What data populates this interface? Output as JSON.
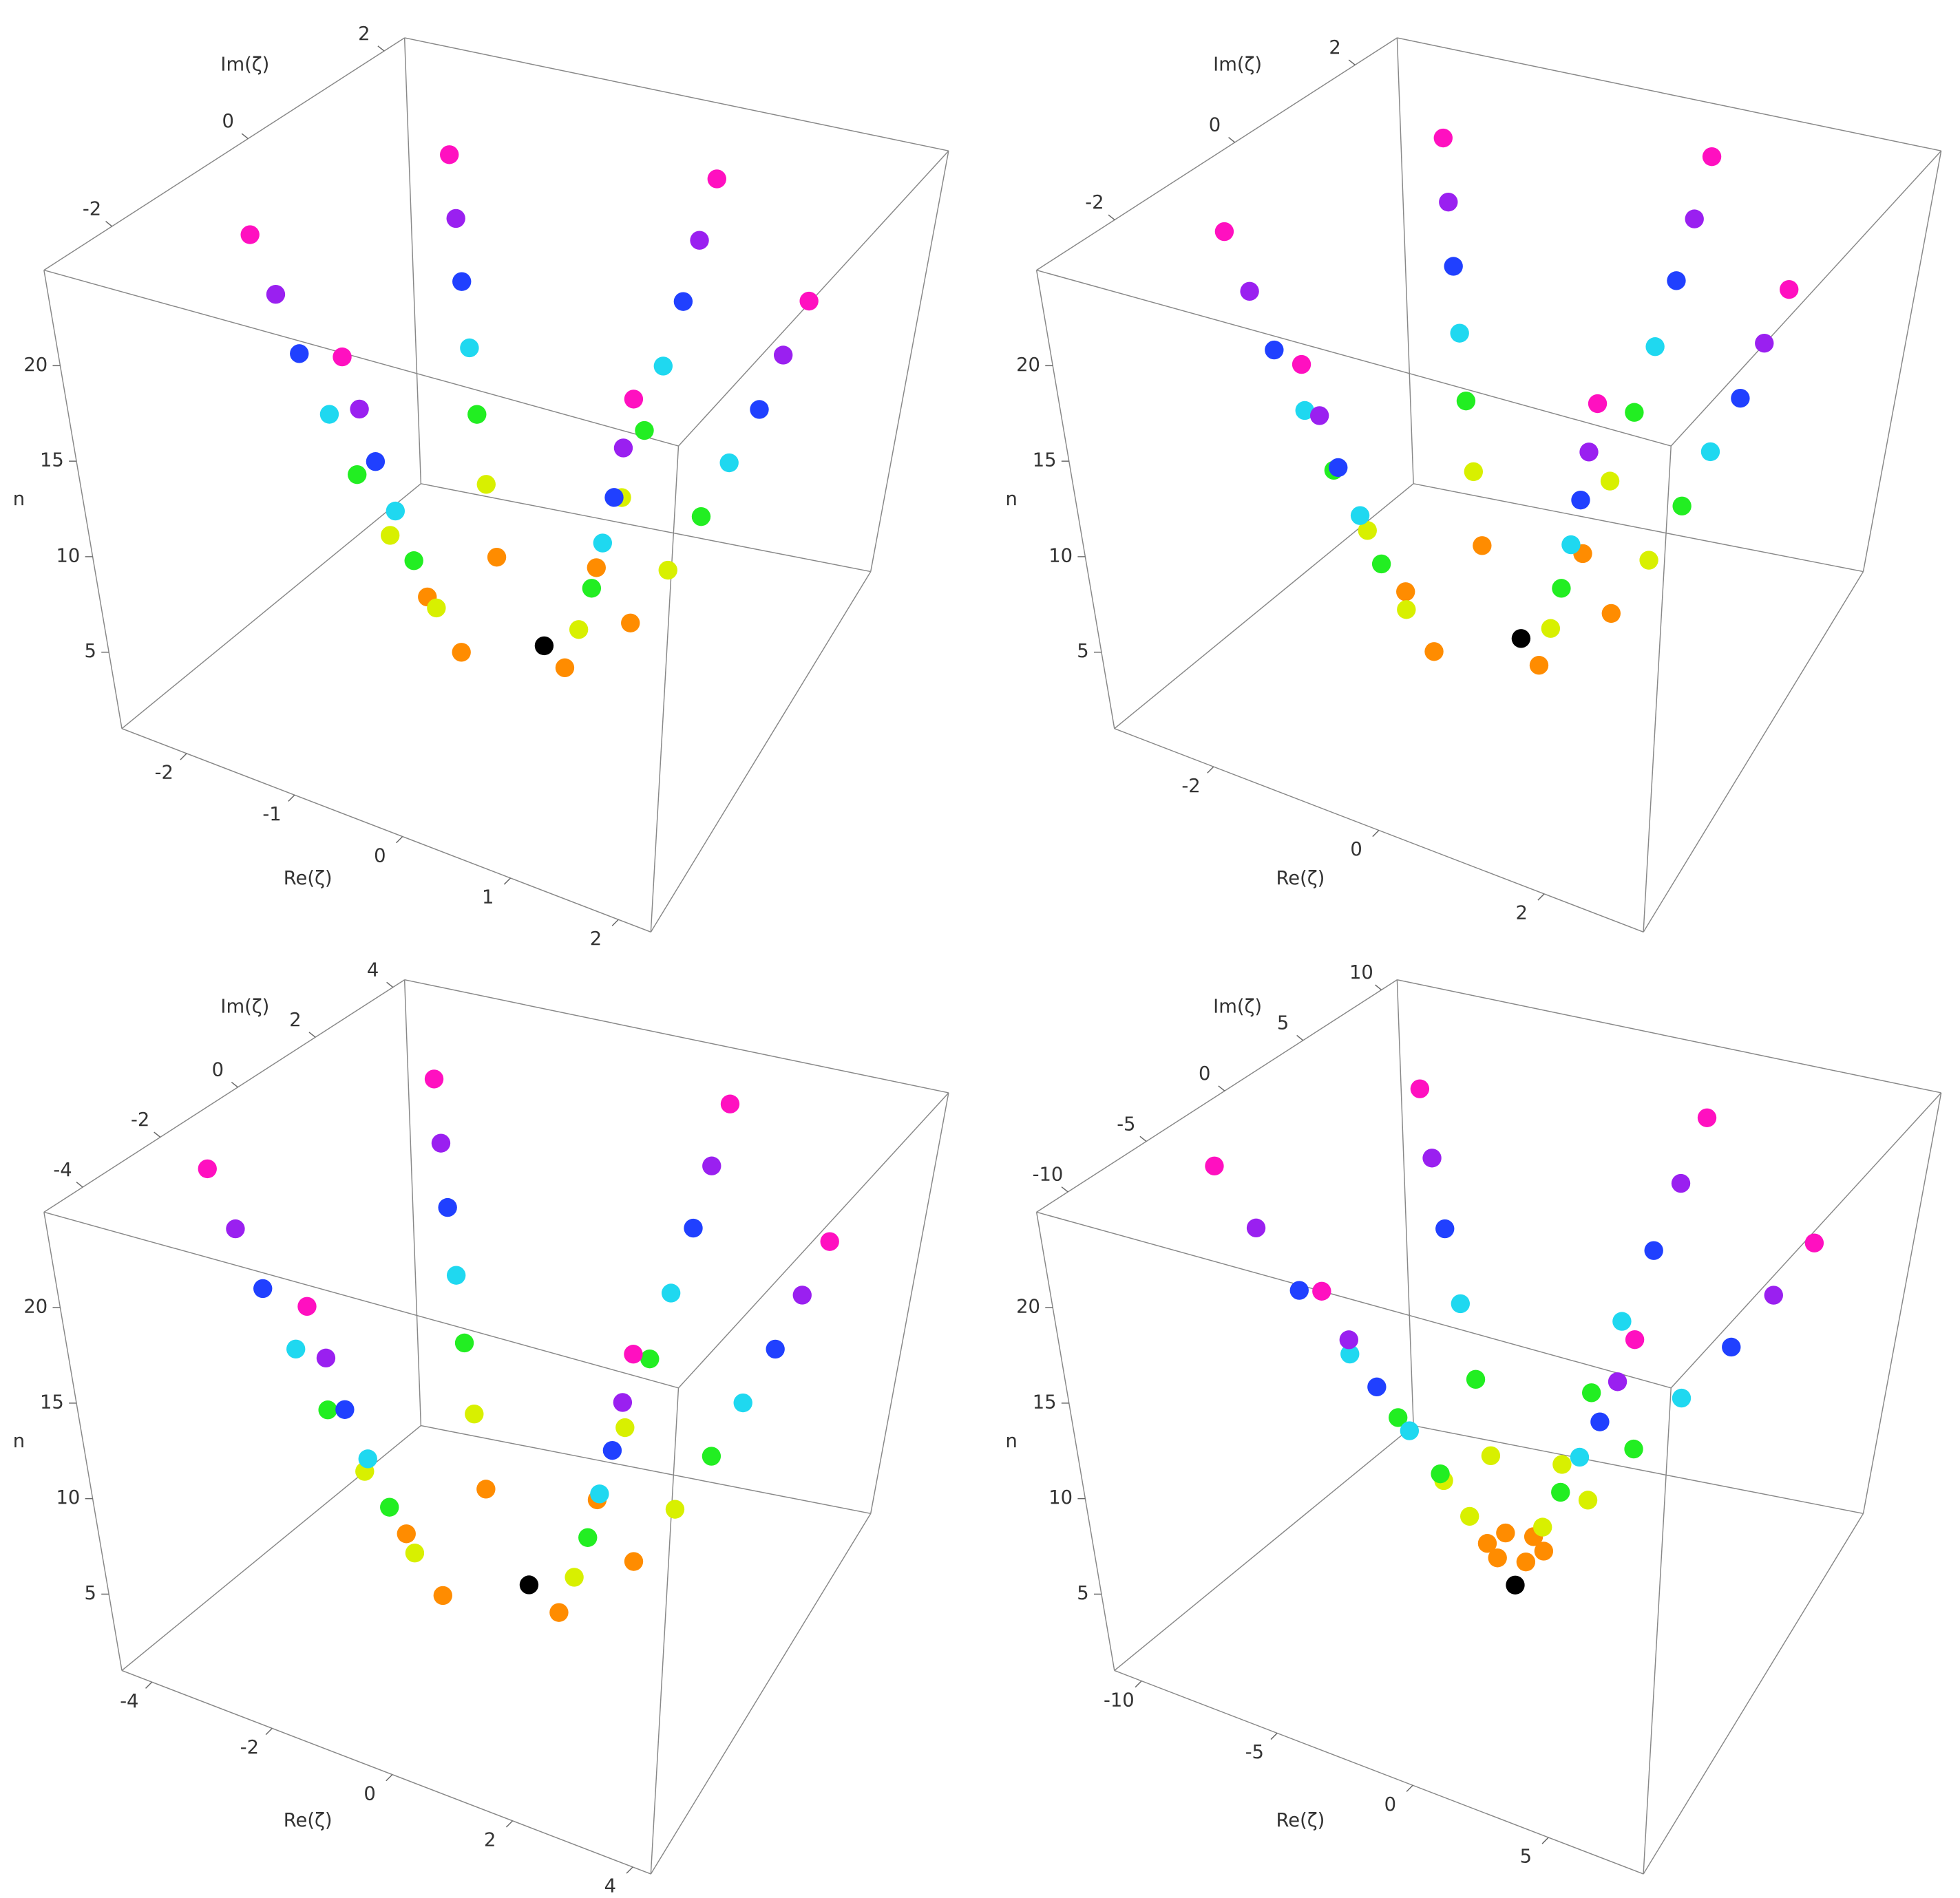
{
  "chart_data": [
    {
      "type": "scatter3d",
      "xlabel": "Re(ζ)",
      "ylabel": "Im(ζ)",
      "zlabel": "n",
      "xlim": [
        -2.6,
        2.3
      ],
      "xticks": [
        -2,
        -1,
        0,
        1,
        2
      ],
      "ylim": [
        -3,
        2.3
      ],
      "yticks": [
        -2,
        0,
        2
      ],
      "zlim": [
        1,
        25
      ],
      "zticks": [
        5,
        10,
        15,
        20
      ],
      "levels": [
        {
          "n": 3,
          "color": "#000000",
          "re": [
            0.1
          ],
          "im": [
            -0.3
          ]
        },
        {
          "n": 5,
          "color": "#ff8c00",
          "re": [
            0.87,
            0.23,
            -0.64,
            -0.87,
            -0.23,
            0.64
          ],
          "im": [
            -0.17,
            0.47,
            0.24,
            -0.63,
            -1.27,
            -1.04
          ]
        },
        {
          "n": 8,
          "color": "#d8f000",
          "re": [
            1.16,
            0.31,
            -0.85,
            -1.16,
            -0.31,
            0.85
          ],
          "im": [
            -0.09,
            0.76,
            0.45,
            -0.71,
            -1.56,
            -1.25
          ]
        },
        {
          "n": 11,
          "color": "#22ee22",
          "re": [
            1.4,
            0.38,
            -1.03,
            -1.4,
            -0.38,
            1.03
          ],
          "im": [
            -0.02,
            1.0,
            0.63,
            -0.78,
            -1.8,
            -1.43
          ]
        },
        {
          "n": 14,
          "color": "#1fd8f0",
          "re": [
            1.59,
            0.43,
            -1.17,
            -1.59,
            -0.43,
            1.17
          ],
          "im": [
            0.03,
            1.19,
            0.77,
            -0.83,
            -1.99,
            -1.57
          ]
        },
        {
          "n": 17,
          "color": "#2040ff",
          "re": [
            1.79,
            0.48,
            -1.31,
            -1.79,
            -0.48,
            1.31
          ],
          "im": [
            0.08,
            1.39,
            0.91,
            -0.88,
            -2.19,
            -1.71
          ]
        },
        {
          "n": 20,
          "color": "#9a20f0",
          "re": [
            1.93,
            0.52,
            -1.41,
            -1.93,
            -0.52,
            1.41
          ],
          "im": [
            0.12,
            1.53,
            1.01,
            -0.92,
            -2.33,
            -1.81
          ]
        },
        {
          "n": 23,
          "color": "#ff10c0",
          "re": [
            2.08,
            0.56,
            -1.52,
            -2.08,
            -0.56,
            1.52
          ],
          "im": [
            0.16,
            1.68,
            1.12,
            -0.96,
            -2.48,
            -1.92
          ]
        }
      ]
    },
    {
      "type": "scatter3d",
      "xlabel": "Re(ζ)",
      "ylabel": "Im(ζ)",
      "zlabel": "n",
      "xlim": [
        -3.2,
        3.2
      ],
      "xticks": [
        -2,
        0,
        2
      ],
      "ylim": [
        -3.3,
        2.7
      ],
      "yticks": [
        -2,
        0,
        2
      ],
      "zlim": [
        1,
        25
      ],
      "zticks": [
        5,
        10,
        15,
        20
      ],
      "levels": [
        {
          "n": 3,
          "color": "#000000",
          "re": [
            0.1
          ],
          "im": [
            -0.2
          ]
        },
        {
          "n": 5,
          "color": "#ff8c00",
          "re": [
            1.13,
            0.3,
            -0.83,
            -1.13,
            -0.3,
            0.83
          ],
          "im": [
            0.0,
            0.83,
            0.53,
            -0.6,
            -1.43,
            -1.13
          ]
        },
        {
          "n": 8,
          "color": "#d8f000",
          "re": [
            1.51,
            0.4,
            -1.1,
            -1.51,
            -0.4,
            1.1
          ],
          "im": [
            0.1,
            1.21,
            0.8,
            -0.7,
            -1.81,
            -1.4
          ]
        },
        {
          "n": 11,
          "color": "#22ee22",
          "re": [
            1.82,
            0.49,
            -1.33,
            -1.82,
            -0.49,
            1.33
          ],
          "im": [
            0.19,
            1.52,
            1.03,
            -0.79,
            -2.12,
            -1.63
          ]
        },
        {
          "n": 14,
          "color": "#1fd8f0",
          "re": [
            2.07,
            0.56,
            -1.52,
            -2.07,
            -0.56,
            1.52
          ],
          "im": [
            0.26,
            1.77,
            1.22,
            -0.86,
            -2.37,
            -1.82
          ]
        },
        {
          "n": 17,
          "color": "#2040ff",
          "re": [
            2.33,
            0.62,
            -1.7,
            -2.33,
            -0.62,
            1.7
          ],
          "im": [
            0.32,
            2.03,
            1.4,
            -0.92,
            -2.63,
            -2.0
          ]
        },
        {
          "n": 20,
          "color": "#9a20f0",
          "re": [
            2.51,
            0.68,
            -1.84,
            -2.51,
            -0.68,
            1.84
          ],
          "im": [
            0.38,
            2.21,
            1.54,
            -0.98,
            -2.81,
            -2.14
          ]
        },
        {
          "n": 23,
          "color": "#ff10c0",
          "re": [
            2.7,
            0.72,
            -1.98,
            -2.7,
            -0.72,
            1.98
          ],
          "im": [
            0.42,
            2.4,
            1.68,
            -1.02,
            -3.0,
            -2.28
          ]
        }
      ]
    },
    {
      "type": "scatter3d",
      "xlabel": "Re(ζ)",
      "ylabel": "Im(ζ)",
      "zlabel": "n",
      "xlim": [
        -4.5,
        4.3
      ],
      "xticks": [
        -4,
        -2,
        0,
        2,
        4
      ],
      "ylim": [
        -5,
        4.3
      ],
      "yticks": [
        -4,
        -2,
        0,
        2,
        4
      ],
      "zlim": [
        1,
        25
      ],
      "zticks": [
        5,
        10,
        15,
        20
      ],
      "levels": [
        {
          "n": 3,
          "color": "#000000",
          "re": [
            0.1
          ],
          "im": [
            -0.3
          ]
        },
        {
          "n": 5,
          "color": "#ff8c00",
          "re": [
            1.74,
            0.47,
            -1.27,
            -1.74,
            -0.47,
            1.27
          ],
          "im": [
            0.07,
            1.34,
            0.87,
            -0.87,
            -2.14,
            -1.67
          ]
        },
        {
          "n": 8,
          "color": "#d8f000",
          "re": [
            2.32,
            0.62,
            -1.7,
            -2.32,
            -0.62,
            1.7
          ],
          "im": [
            0.22,
            1.92,
            1.3,
            -1.02,
            -2.72,
            -2.1
          ]
        },
        {
          "n": 11,
          "color": "#22ee22",
          "re": [
            2.8,
            0.75,
            -2.05,
            -2.8,
            -0.75,
            2.05
          ],
          "im": [
            0.35,
            2.4,
            1.65,
            -1.15,
            -3.2,
            -2.45
          ]
        },
        {
          "n": 14,
          "color": "#1fd8f0",
          "re": [
            3.19,
            0.85,
            -2.33,
            -3.19,
            -0.85,
            2.33
          ],
          "im": [
            0.45,
            2.79,
            1.93,
            -1.25,
            -3.59,
            -2.73
          ]
        },
        {
          "n": 17,
          "color": "#2040ff",
          "re": [
            3.57,
            0.96,
            -2.62,
            -3.57,
            -0.96,
            2.62
          ],
          "im": [
            0.56,
            3.17,
            2.22,
            -1.36,
            -3.97,
            -3.02
          ]
        },
        {
          "n": 20,
          "color": "#9a20f0",
          "re": [
            3.86,
            1.04,
            -2.83,
            -3.86,
            -1.04,
            2.83
          ],
          "im": [
            0.64,
            3.46,
            2.43,
            -1.44,
            -4.26,
            -3.23
          ]
        },
        {
          "n": 23,
          "color": "#ff10c0",
          "re": [
            4.15,
            1.11,
            -3.04,
            -4.15,
            -1.11,
            3.04
          ],
          "im": [
            0.71,
            3.75,
            2.64,
            -1.51,
            -4.55,
            -3.44
          ]
        }
      ]
    },
    {
      "type": "scatter3d",
      "xlabel": "Re(ζ)",
      "ylabel": "Im(ζ)",
      "zlabel": "n",
      "xlim": [
        -11,
        8.5
      ],
      "xticks": [
        -10,
        -5,
        0,
        5
      ],
      "ylim": [
        -12,
        11
      ],
      "yticks": [
        -10,
        -5,
        0,
        5,
        10
      ],
      "zlim": [
        1,
        25
      ],
      "zticks": [
        5,
        10,
        15,
        20
      ],
      "levels": [
        {
          "n": 3,
          "color": "#000000",
          "re": [
            -1
          ],
          "im": [
            -0.5
          ]
        },
        {
          "n": 5,
          "color": "#ff8c00",
          "re": [
            -0.03,
            -0.74,
            -1.71,
            -1.97,
            -1.26,
            -0.29
          ],
          "im": [
            -0.24,
            0.47,
            0.21,
            -0.76,
            -1.47,
            -1.21
          ]
        },
        {
          "n": 8,
          "color": "#d8f000",
          "re": [
            1.42,
            -0.35,
            -2.77,
            -3.42,
            -1.65,
            0.77
          ],
          "im": [
            0.15,
            1.92,
            1.27,
            -1.15,
            -2.92,
            -2.27
          ]
        },
        {
          "n": 11,
          "color": "#22ee22",
          "re": [
            2.86,
            0.04,
            -3.83,
            -4.86,
            -2.04,
            1.83
          ],
          "im": [
            0.54,
            3.36,
            2.33,
            -1.54,
            -4.36,
            -3.33
          ]
        },
        {
          "n": 14,
          "color": "#1fd8f0",
          "re": [
            4.31,
            0.42,
            -4.89,
            -6.31,
            -2.42,
            2.89
          ],
          "im": [
            0.92,
            4.81,
            3.39,
            -1.92,
            -5.81,
            -4.39
          ]
        },
        {
          "n": 17,
          "color": "#2040ff",
          "re": [
            5.76,
            0.81,
            -5.95,
            -7.76,
            -2.81,
            3.95
          ],
          "im": [
            1.31,
            6.26,
            4.45,
            -2.31,
            -7.26,
            -5.45
          ]
        },
        {
          "n": 20,
          "color": "#9a20f0",
          "re": [
            6.92,
            1.12,
            -6.8,
            -8.92,
            -3.12,
            4.8
          ],
          "im": [
            1.62,
            7.42,
            5.3,
            -2.62,
            -8.42,
            -6.3
          ]
        },
        {
          "n": 23,
          "color": "#ff10c0",
          "re": [
            7.98,
            1.41,
            -7.58,
            -9.98,
            -3.41,
            5.58
          ],
          "im": [
            1.91,
            8.48,
            6.08,
            -2.91,
            -9.48,
            -7.08
          ]
        }
      ]
    }
  ]
}
